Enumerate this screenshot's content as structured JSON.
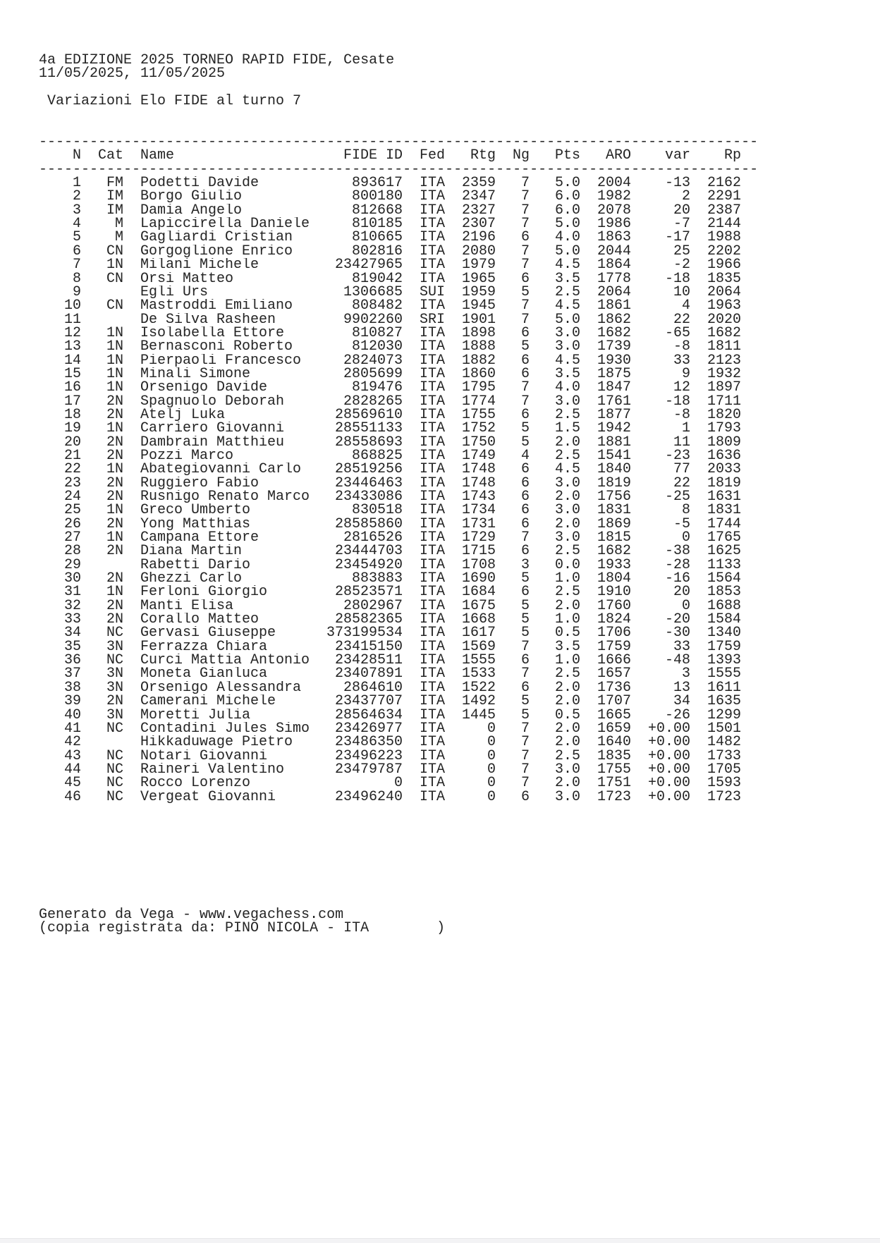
{
  "page": {
    "background_color": "#ffffff",
    "text_color": "#242424",
    "bottom_bar_color": "#f3f3f5"
  },
  "header": {
    "title": "4a EDIZIONE 2025 TORNEO RAPID FIDE, Cesate",
    "dates": "11/05/2025, 11/05/2025",
    "subtitle": "Variazioni Elo FIDE al turno 7"
  },
  "table": {
    "rule": "-------------------------------------------------------------------------------------",
    "columns": [
      "N",
      "Cat",
      "Name",
      "FIDE ID",
      "Fed",
      "Rtg",
      "Ng",
      "Pts",
      "ARO",
      "var",
      "Rp"
    ],
    "rows": [
      [
        "1",
        "FM",
        "Podetti Davide",
        "893617",
        "ITA",
        "2359",
        "7",
        "5.0",
        "2004",
        "-13",
        "2162"
      ],
      [
        "2",
        "IM",
        "Borgo Giulio",
        "800180",
        "ITA",
        "2347",
        "7",
        "6.0",
        "1982",
        "2",
        "2291"
      ],
      [
        "3",
        "IM",
        "Damia Angelo",
        "812668",
        "ITA",
        "2327",
        "7",
        "6.0",
        "2078",
        "20",
        "2387"
      ],
      [
        "4",
        "M",
        "Lapiccirella Daniele",
        "810185",
        "ITA",
        "2307",
        "7",
        "5.0",
        "1986",
        "-7",
        "2144"
      ],
      [
        "5",
        "M",
        "Gagliardi Cristian",
        "810665",
        "ITA",
        "2196",
        "6",
        "4.0",
        "1863",
        "-17",
        "1988"
      ],
      [
        "6",
        "CN",
        "Gorgoglione Enrico",
        "802816",
        "ITA",
        "2080",
        "7",
        "5.0",
        "2044",
        "25",
        "2202"
      ],
      [
        "7",
        "1N",
        "Milani Michele",
        "23427965",
        "ITA",
        "1979",
        "7",
        "4.5",
        "1864",
        "-2",
        "1966"
      ],
      [
        "8",
        "CN",
        "Orsi Matteo",
        "819042",
        "ITA",
        "1965",
        "6",
        "3.5",
        "1778",
        "-18",
        "1835"
      ],
      [
        "9",
        "",
        "Egli Urs",
        "1306685",
        "SUI",
        "1959",
        "5",
        "2.5",
        "2064",
        "10",
        "2064"
      ],
      [
        "10",
        "CN",
        "Mastroddi Emiliano",
        "808482",
        "ITA",
        "1945",
        "7",
        "4.5",
        "1861",
        "4",
        "1963"
      ],
      [
        "11",
        "",
        "De Silva Rasheen",
        "9902260",
        "SRI",
        "1901",
        "7",
        "5.0",
        "1862",
        "22",
        "2020"
      ],
      [
        "12",
        "1N",
        "Isolabella Ettore",
        "810827",
        "ITA",
        "1898",
        "6",
        "3.0",
        "1682",
        "-65",
        "1682"
      ],
      [
        "13",
        "1N",
        "Bernasconi Roberto",
        "812030",
        "ITA",
        "1888",
        "5",
        "3.0",
        "1739",
        "-8",
        "1811"
      ],
      [
        "14",
        "1N",
        "Pierpaoli Francesco",
        "2824073",
        "ITA",
        "1882",
        "6",
        "4.5",
        "1930",
        "33",
        "2123"
      ],
      [
        "15",
        "1N",
        "Minali Simone",
        "2805699",
        "ITA",
        "1860",
        "6",
        "3.5",
        "1875",
        "9",
        "1932"
      ],
      [
        "16",
        "1N",
        "Orsenigo Davide",
        "819476",
        "ITA",
        "1795",
        "7",
        "4.0",
        "1847",
        "12",
        "1897"
      ],
      [
        "17",
        "2N",
        "Spagnuolo Deborah",
        "2828265",
        "ITA",
        "1774",
        "7",
        "3.0",
        "1761",
        "-18",
        "1711"
      ],
      [
        "18",
        "2N",
        "Atelj Luka",
        "28569610",
        "ITA",
        "1755",
        "6",
        "2.5",
        "1877",
        "-8",
        "1820"
      ],
      [
        "19",
        "1N",
        "Carriero Giovanni",
        "28551133",
        "ITA",
        "1752",
        "5",
        "1.5",
        "1942",
        "1",
        "1793"
      ],
      [
        "20",
        "2N",
        "Dambrain Matthieu",
        "28558693",
        "ITA",
        "1750",
        "5",
        "2.0",
        "1881",
        "11",
        "1809"
      ],
      [
        "21",
        "2N",
        "Pozzi Marco",
        "868825",
        "ITA",
        "1749",
        "4",
        "2.5",
        "1541",
        "-23",
        "1636"
      ],
      [
        "22",
        "1N",
        "Abategiovanni Carlo",
        "28519256",
        "ITA",
        "1748",
        "6",
        "4.5",
        "1840",
        "77",
        "2033"
      ],
      [
        "23",
        "2N",
        "Ruggiero Fabio",
        "23446463",
        "ITA",
        "1748",
        "6",
        "3.0",
        "1819",
        "22",
        "1819"
      ],
      [
        "24",
        "2N",
        "Rusnigo Renato Marco",
        "23433086",
        "ITA",
        "1743",
        "6",
        "2.0",
        "1756",
        "-25",
        "1631"
      ],
      [
        "25",
        "1N",
        "Greco Umberto",
        "830518",
        "ITA",
        "1734",
        "6",
        "3.0",
        "1831",
        "8",
        "1831"
      ],
      [
        "26",
        "2N",
        "Yong Matthias",
        "28585860",
        "ITA",
        "1731",
        "6",
        "2.0",
        "1869",
        "-5",
        "1744"
      ],
      [
        "27",
        "1N",
        "Campana Ettore",
        "2816526",
        "ITA",
        "1729",
        "7",
        "3.0",
        "1815",
        "0",
        "1765"
      ],
      [
        "28",
        "2N",
        "Diana Martin",
        "23444703",
        "ITA",
        "1715",
        "6",
        "2.5",
        "1682",
        "-38",
        "1625"
      ],
      [
        "29",
        "",
        "Rabetti Dario",
        "23454920",
        "ITA",
        "1708",
        "3",
        "0.0",
        "1933",
        "-28",
        "1133"
      ],
      [
        "30",
        "2N",
        "Ghezzi Carlo",
        "883883",
        "ITA",
        "1690",
        "5",
        "1.0",
        "1804",
        "-16",
        "1564"
      ],
      [
        "31",
        "1N",
        "Ferloni Giorgio",
        "28523571",
        "ITA",
        "1684",
        "6",
        "2.5",
        "1910",
        "20",
        "1853"
      ],
      [
        "32",
        "2N",
        "Manti Elisa",
        "2802967",
        "ITA",
        "1675",
        "5",
        "2.0",
        "1760",
        "0",
        "1688"
      ],
      [
        "33",
        "2N",
        "Corallo Matteo",
        "28582365",
        "ITA",
        "1668",
        "5",
        "1.0",
        "1824",
        "-20",
        "1584"
      ],
      [
        "34",
        "NC",
        "Gervasi Giuseppe",
        "373199534",
        "ITA",
        "1617",
        "5",
        "0.5",
        "1706",
        "-30",
        "1340"
      ],
      [
        "35",
        "3N",
        "Ferrazza Chiara",
        "23415150",
        "ITA",
        "1569",
        "7",
        "3.5",
        "1759",
        "33",
        "1759"
      ],
      [
        "36",
        "NC",
        "Curci Mattia Antonio",
        "23428511",
        "ITA",
        "1555",
        "6",
        "1.0",
        "1666",
        "-48",
        "1393"
      ],
      [
        "37",
        "3N",
        "Moneta Gianluca",
        "23407891",
        "ITA",
        "1533",
        "7",
        "2.5",
        "1657",
        "3",
        "1555"
      ],
      [
        "38",
        "3N",
        "Orsenigo Alessandra",
        "2864610",
        "ITA",
        "1522",
        "6",
        "2.0",
        "1736",
        "13",
        "1611"
      ],
      [
        "39",
        "2N",
        "Camerani Michele",
        "23437707",
        "ITA",
        "1492",
        "5",
        "2.0",
        "1707",
        "34",
        "1635"
      ],
      [
        "40",
        "3N",
        "Moretti Julia",
        "28564634",
        "ITA",
        "1445",
        "5",
        "0.5",
        "1665",
        "-26",
        "1299"
      ],
      [
        "41",
        "NC",
        "Contadini Jules Simo",
        "23426977",
        "ITA",
        "0",
        "7",
        "2.0",
        "1659",
        "+0.00",
        "1501"
      ],
      [
        "42",
        "",
        "Hikkaduwage Pietro",
        "23486350",
        "ITA",
        "0",
        "7",
        "2.0",
        "1640",
        "+0.00",
        "1482"
      ],
      [
        "43",
        "NC",
        "Notari Giovanni",
        "23496223",
        "ITA",
        "0",
        "7",
        "2.5",
        "1835",
        "+0.00",
        "1733"
      ],
      [
        "44",
        "NC",
        "Raineri Valentino",
        "23479787",
        "ITA",
        "0",
        "7",
        "3.0",
        "1755",
        "+0.00",
        "1705"
      ],
      [
        "45",
        "NC",
        "Rocco Lorenzo",
        "0",
        "ITA",
        "0",
        "7",
        "2.0",
        "1751",
        "+0.00",
        "1593"
      ],
      [
        "46",
        "NC",
        "Vergeat Giovanni",
        "23496240",
        "ITA",
        "0",
        "6",
        "3.0",
        "1723",
        "+0.00",
        "1723"
      ]
    ]
  },
  "footer": {
    "generated": "Generato da Vega - www.vegachess.com",
    "copy": "(copia registrata da: PINO NICOLA - ITA        )"
  }
}
